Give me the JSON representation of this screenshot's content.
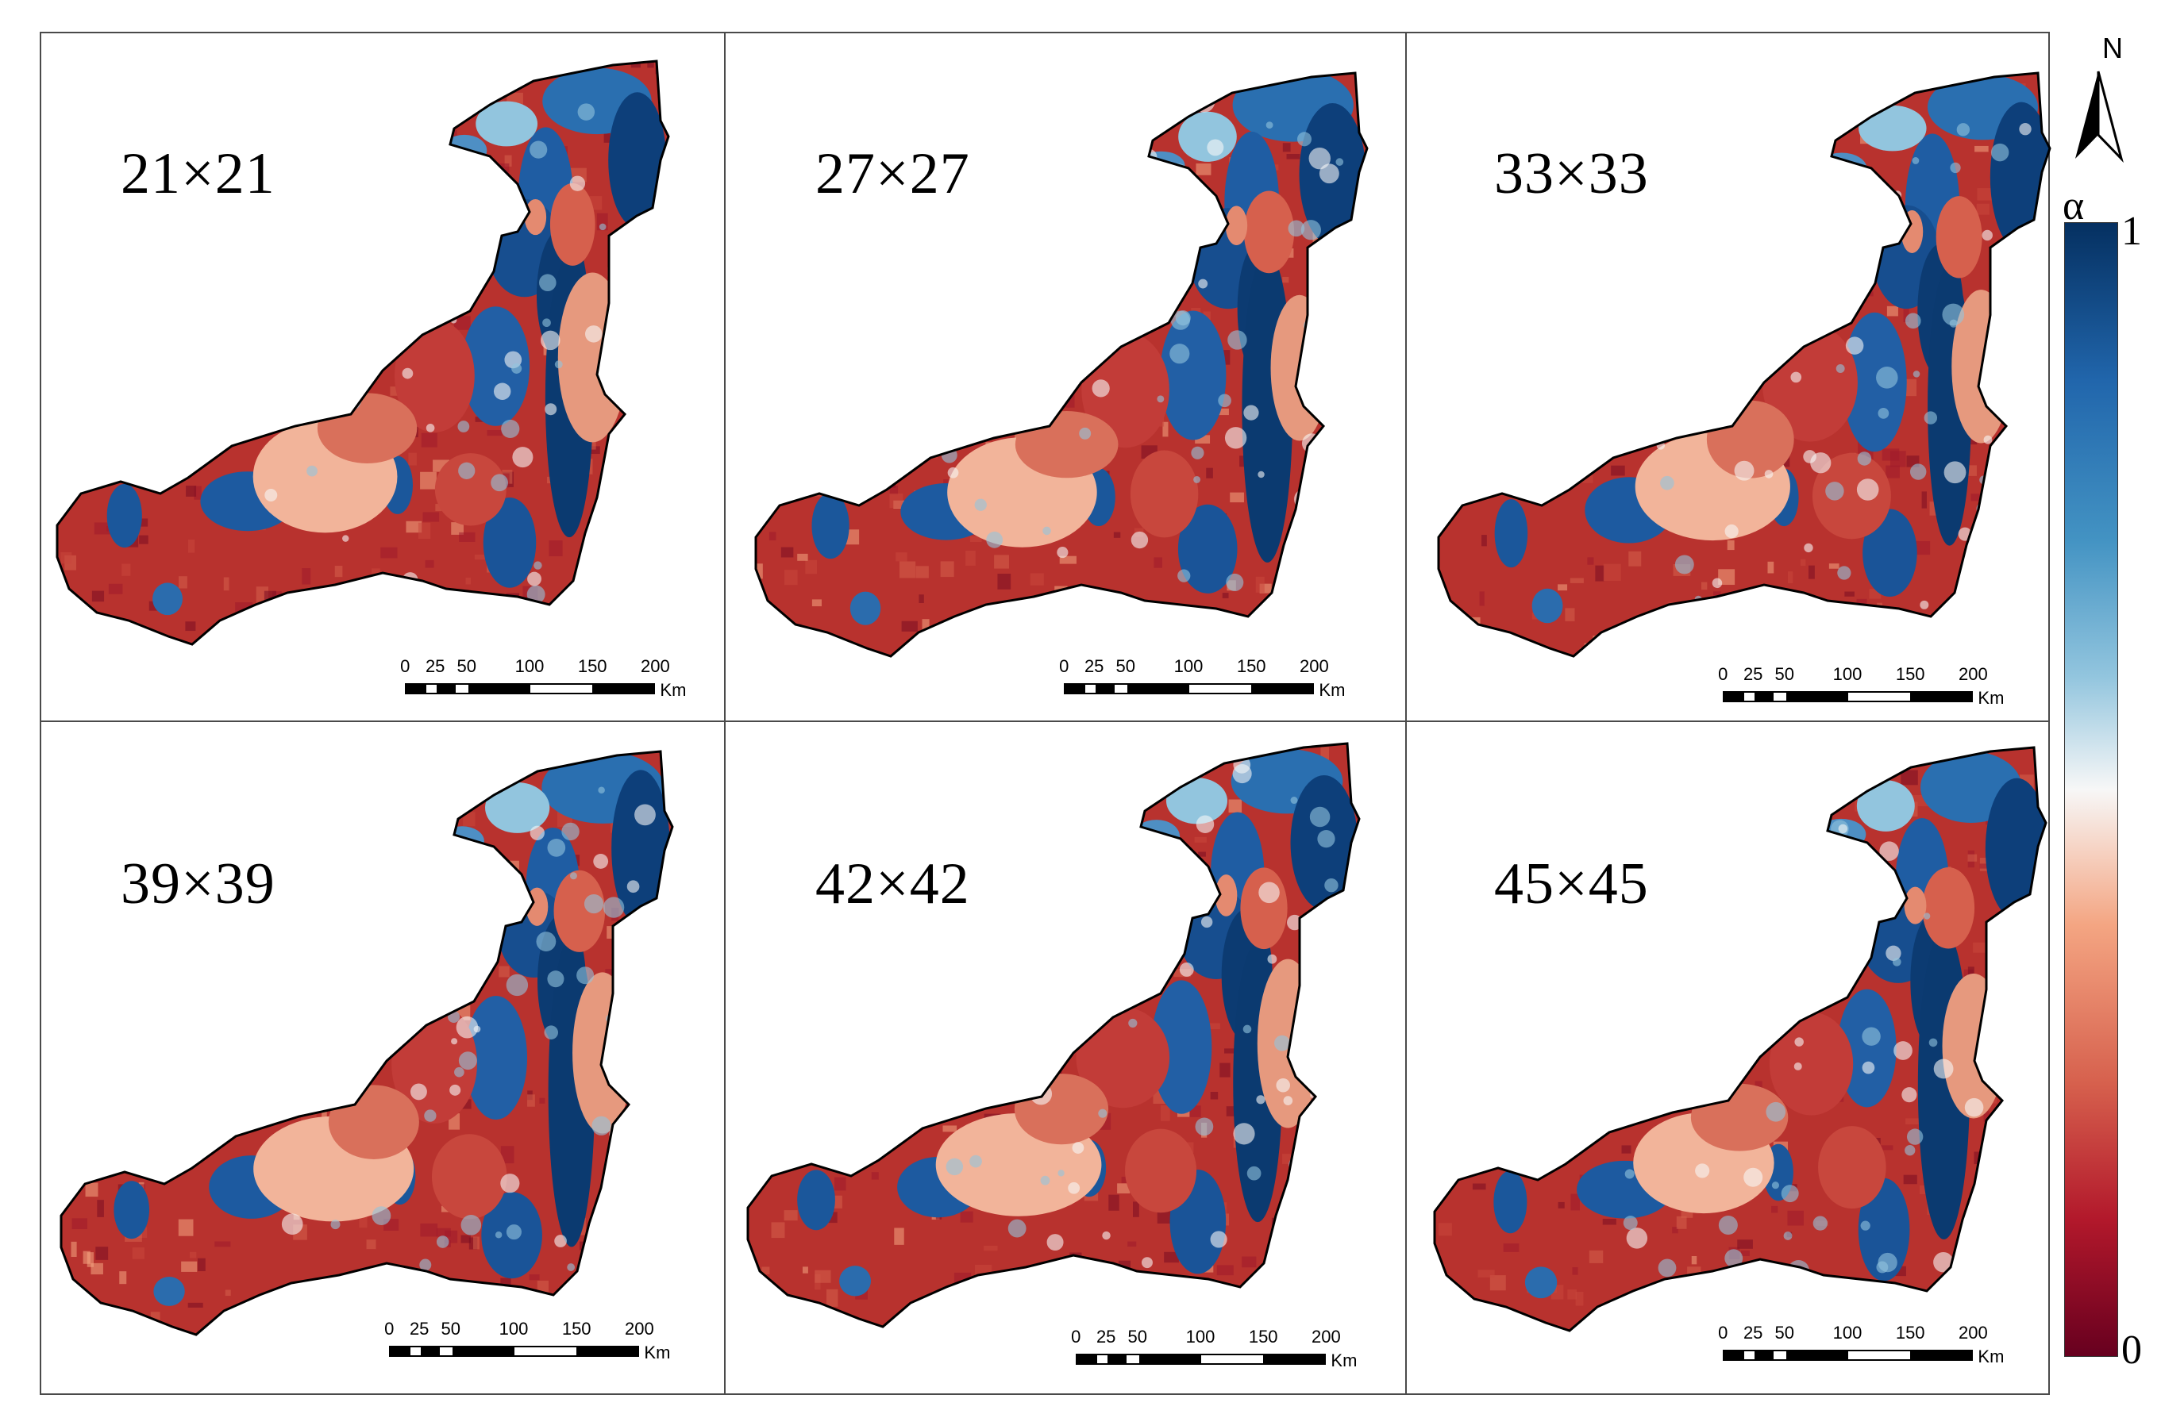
{
  "panels": [
    {
      "label": "21×21",
      "seed": 1
    },
    {
      "label": "27×27",
      "seed": 2
    },
    {
      "label": "33×33",
      "seed": 3
    },
    {
      "label": "39×39",
      "seed": 4
    },
    {
      "label": "42×42",
      "seed": 5
    },
    {
      "label": "45×45",
      "seed": 6
    }
  ],
  "scalebar": {
    "ticks": [
      "0",
      "25",
      "50",
      "100",
      "150",
      "200"
    ],
    "unit": "Km"
  },
  "legend": {
    "north": "N",
    "symbol": "α",
    "max": "1",
    "min": "0"
  },
  "colors": {
    "high": "#053061",
    "mid": "#f7f7f7",
    "low": "#67001f"
  }
}
